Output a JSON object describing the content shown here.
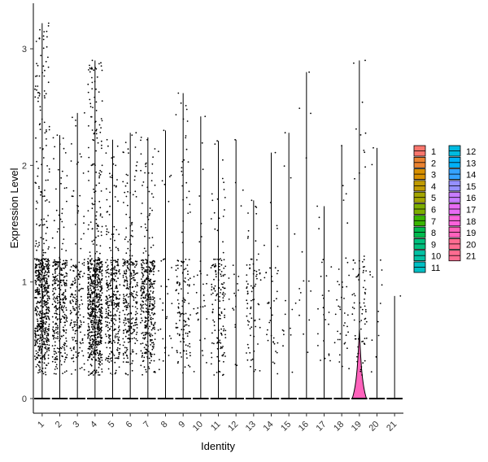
{
  "chart_data": {
    "type": "violin",
    "xlabel": "Identity",
    "ylabel": "Expression Level",
    "ylim": [
      -0.15,
      3.35
    ],
    "yticks": [
      0,
      1,
      2,
      3
    ],
    "grid": false,
    "legend_position": "right",
    "categories": [
      "1",
      "2",
      "3",
      "4",
      "5",
      "6",
      "7",
      "8",
      "9",
      "10",
      "11",
      "12",
      "13",
      "14",
      "15",
      "16",
      "17",
      "18",
      "19",
      "20",
      "21"
    ],
    "colors": [
      "#F8766D",
      "#EA8331",
      "#D89000",
      "#C09B00",
      "#A3A500",
      "#7CAE00",
      "#39B600",
      "#00BB4E",
      "#00BF7D",
      "#00C1A3",
      "#00BFC4",
      "#00BAE0",
      "#00B0F6",
      "#35A2FF",
      "#9590FF",
      "#C77CFF",
      "#E76BF3",
      "#FA62DB",
      "#FF62BC",
      "#FF6C91",
      "#FF6C91"
    ],
    "max_expression": [
      3.22,
      2.26,
      2.45,
      2.9,
      2.22,
      2.28,
      2.24,
      2.3,
      2.62,
      2.42,
      2.21,
      2.22,
      1.7,
      2.11,
      2.28,
      2.8,
      1.65,
      2.17,
      2.9,
      2.15,
      0.88
    ],
    "nonzero_cells": [
      650,
      330,
      180,
      720,
      310,
      300,
      380,
      35,
      140,
      35,
      150,
      20,
      80,
      40,
      15,
      15,
      25,
      40,
      80,
      15,
      1
    ],
    "nonzero_typical_range": [
      0.3,
      1.2
    ],
    "zero_point_mass": true,
    "highlighted_violin": {
      "category": "19",
      "color": "#FF62BC"
    }
  },
  "legend": {
    "column1": [
      "1",
      "2",
      "3",
      "4",
      "5",
      "6",
      "7",
      "8",
      "9",
      "10",
      "11"
    ],
    "column2": [
      "12",
      "13",
      "14",
      "15",
      "16",
      "17",
      "18",
      "19",
      "20",
      "21"
    ]
  }
}
